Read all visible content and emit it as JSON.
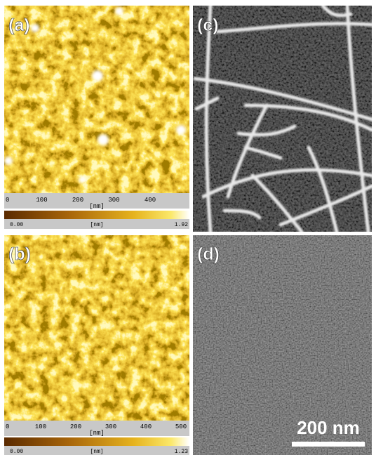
{
  "panels": [
    {
      "label": "(a)",
      "axis": {
        "ticks": [
          "0",
          "100",
          "200",
          "300",
          "400"
        ],
        "unit": "[nm]"
      },
      "colorbar": {
        "min": "0.00",
        "unit": "[nm]",
        "max": "1.92"
      }
    },
    {
      "label": "(b)",
      "axis": {
        "ticks": [
          "0",
          "100",
          "200",
          "300",
          "400",
          "500"
        ],
        "unit": "[nm]"
      },
      "colorbar": {
        "min": "0.00",
        "unit": "[nm]",
        "max": "1.23"
      }
    },
    {
      "label": "(c)"
    },
    {
      "label": "(d)",
      "scale_bar": "200 nm"
    }
  ]
}
